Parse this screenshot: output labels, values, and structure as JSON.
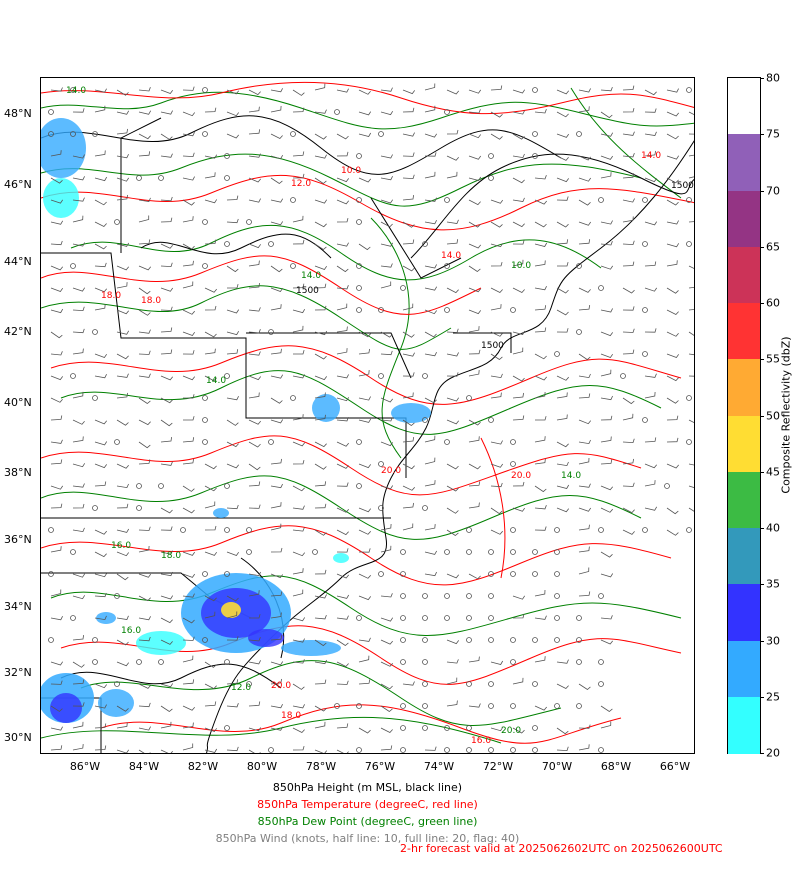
{
  "map": {
    "lat_labels": [
      "48°N",
      "46°N",
      "44°N",
      "42°N",
      "40°N",
      "38°N",
      "36°N",
      "34°N",
      "32°N",
      "30°N"
    ],
    "lon_labels": [
      "86°W",
      "84°W",
      "82°W",
      "80°W",
      "78°W",
      "76°W",
      "74°W",
      "72°W",
      "70°W",
      "68°W",
      "66°W"
    ],
    "contour_labels": [
      "1500",
      "10.0",
      "12.0",
      "14.0",
      "16.0",
      "18.0",
      "20.0"
    ],
    "colors": {
      "height_contour": "#000000",
      "temperature_contour": "#ff0000",
      "dewpoint_contour": "#008000",
      "wind_barb": "#555555",
      "coastline": "#000000"
    }
  },
  "colorbar": {
    "title": "Composite Reflectivity (dbZ)",
    "ticks": [
      "80",
      "75",
      "70",
      "65",
      "60",
      "55",
      "50",
      "45",
      "40",
      "35",
      "30",
      "25",
      "20"
    ],
    "colors": [
      "#ffffff",
      "#9060b8",
      "#943484",
      "#cc3358",
      "#ff3333",
      "#ffaa33",
      "#ffdd33",
      "#3cbb44",
      "#3399bb",
      "#3333ff",
      "#33aaff",
      "#33ffff"
    ]
  },
  "legend": {
    "height": "850hPa Height (m MSL, black line)",
    "temperature": "850hPa Temperature (degreeC, red line)",
    "dewpoint": "850hPa Dew Point (degreeC, green line)",
    "wind": "850hPa Wind (knots, half line: 10, full line: 20, flag: 40)",
    "forecast": "2-hr forecast valid at 2025062602UTC on 2025062600UTC",
    "colors": {
      "height": "#000000",
      "temperature": "#ff0000",
      "dewpoint": "#008000",
      "wind": "#808080",
      "forecast": "#ff0000"
    }
  }
}
